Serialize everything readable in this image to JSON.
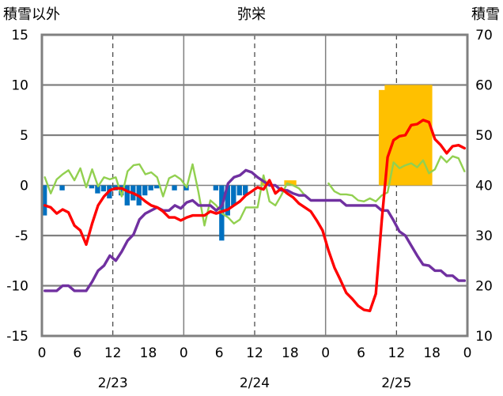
{
  "chart_data": {
    "type": "line",
    "title": "弥栄",
    "left_axis_title": "積雪以外",
    "right_axis_title": "積雪",
    "y_left": {
      "min": -15,
      "max": 15,
      "ticks": [
        15,
        10,
        5,
        0,
        -5,
        -10,
        -15
      ]
    },
    "y_right": {
      "min": 10,
      "max": 70,
      "ticks": [
        70,
        60,
        50,
        40,
        30,
        20,
        10
      ]
    },
    "x": {
      "min": 0,
      "max": 72,
      "step_hours": 1
    },
    "x_ticks": [
      {
        "t": 0,
        "label": "0"
      },
      {
        "t": 6,
        "label": "6"
      },
      {
        "t": 12,
        "label": "12"
      },
      {
        "t": 18,
        "label": "18"
      },
      {
        "t": 24,
        "label": "0"
      },
      {
        "t": 30,
        "label": "6"
      },
      {
        "t": 36,
        "label": "12"
      },
      {
        "t": 42,
        "label": "18"
      },
      {
        "t": 48,
        "label": "0"
      },
      {
        "t": 54,
        "label": "6"
      },
      {
        "t": 60,
        "label": "12"
      },
      {
        "t": 66,
        "label": "18"
      },
      {
        "t": 72,
        "label": "0"
      }
    ],
    "date_labels": [
      {
        "t": 12,
        "label": "2/23"
      },
      {
        "t": 36,
        "label": "2/24"
      },
      {
        "t": 60,
        "label": "2/25"
      }
    ],
    "day_lines": [
      24,
      48
    ],
    "half_day_lines": [
      12,
      36,
      60
    ],
    "colors": {
      "temperature": "#ff0000",
      "dewpoint": "#92d050",
      "wind": "#7030a0",
      "precip": "#0070c0",
      "snow": "#ffc000",
      "axis": "#808080"
    },
    "series_red": [
      {
        "t": 0,
        "v": -2.0
      },
      {
        "t": 1,
        "v": -2.2
      },
      {
        "t": 2,
        "v": -2.8
      },
      {
        "t": 3,
        "v": -2.4
      },
      {
        "t": 4,
        "v": -2.7
      },
      {
        "t": 5,
        "v": -4.0
      },
      {
        "t": 6,
        "v": -4.5
      },
      {
        "t": 7,
        "v": -5.9
      },
      {
        "t": 8,
        "v": -3.8
      },
      {
        "t": 9,
        "v": -2.0
      },
      {
        "t": 10,
        "v": -1.1
      },
      {
        "t": 11,
        "v": -0.5
      },
      {
        "t": 12,
        "v": -0.3
      },
      {
        "t": 13,
        "v": -0.3
      },
      {
        "t": 14,
        "v": -0.6
      },
      {
        "t": 15,
        "v": -0.8
      },
      {
        "t": 16,
        "v": -1.1
      },
      {
        "t": 17,
        "v": -1.6
      },
      {
        "t": 18,
        "v": -2.0
      },
      {
        "t": 19,
        "v": -2.2
      },
      {
        "t": 20,
        "v": -2.6
      },
      {
        "t": 21,
        "v": -3.2
      },
      {
        "t": 22,
        "v": -3.2
      },
      {
        "t": 23,
        "v": -3.5
      },
      {
        "t": 24,
        "v": -3.2
      },
      {
        "t": 25,
        "v": -3.0
      },
      {
        "t": 26,
        "v": -3.0
      },
      {
        "t": 27,
        "v": -3.0
      },
      {
        "t": 28,
        "v": -2.6
      },
      {
        "t": 29,
        "v": -2.8
      },
      {
        "t": 30,
        "v": -2.6
      },
      {
        "t": 31,
        "v": -2.4
      },
      {
        "t": 32,
        "v": -2.0
      },
      {
        "t": 33,
        "v": -1.6
      },
      {
        "t": 34,
        "v": -1.0
      },
      {
        "t": 35,
        "v": -0.6
      },
      {
        "t": 36,
        "v": -0.2
      },
      {
        "t": 37,
        "v": -0.4
      },
      {
        "t": 38,
        "v": 0.5
      },
      {
        "t": 39,
        "v": -0.8
      },
      {
        "t": 40,
        "v": -0.3
      },
      {
        "t": 41,
        "v": -0.8
      },
      {
        "t": 42,
        "v": -1.2
      },
      {
        "t": 43,
        "v": -1.8
      },
      {
        "t": 44,
        "v": -2.2
      },
      {
        "t": 45,
        "v": -2.6
      },
      {
        "t": 46,
        "v": -3.5
      },
      {
        "t": 47,
        "v": -4.5
      },
      {
        "t": 48,
        "v": -6.5
      },
      {
        "t": 49,
        "v": -8.2
      },
      {
        "t": 50,
        "v": -9.4
      },
      {
        "t": 51,
        "v": -10.7
      },
      {
        "t": 52,
        "v": -11.3
      },
      {
        "t": 53,
        "v": -12.0
      },
      {
        "t": 54,
        "v": -12.4
      },
      {
        "t": 55,
        "v": -12.5
      },
      {
        "t": 56,
        "v": -10.8
      },
      {
        "t": 57,
        "v": -3.5
      },
      {
        "t": 58,
        "v": 2.8
      },
      {
        "t": 59,
        "v": 4.5
      },
      {
        "t": 60,
        "v": 4.9
      },
      {
        "t": 61,
        "v": 5.0
      },
      {
        "t": 62,
        "v": 6.0
      },
      {
        "t": 63,
        "v": 6.1
      },
      {
        "t": 64,
        "v": 6.5
      },
      {
        "t": 65,
        "v": 6.3
      },
      {
        "t": 66,
        "v": 4.6
      },
      {
        "t": 67,
        "v": 4.0
      },
      {
        "t": 68,
        "v": 3.2
      },
      {
        "t": 69,
        "v": 3.9
      },
      {
        "t": 70,
        "v": 4.0
      },
      {
        "t": 71,
        "v": 3.7
      }
    ],
    "series_green": [
      {
        "t": 0,
        "v": 0.8
      },
      {
        "t": 1,
        "v": -0.8
      },
      {
        "t": 2,
        "v": 0.6
      },
      {
        "t": 3,
        "v": 1.1
      },
      {
        "t": 4,
        "v": 1.5
      },
      {
        "t": 5,
        "v": 0.5
      },
      {
        "t": 6,
        "v": 1.7
      },
      {
        "t": 7,
        "v": -0.2
      },
      {
        "t": 8,
        "v": 1.6
      },
      {
        "t": 9,
        "v": -0.1
      },
      {
        "t": 10,
        "v": 0.8
      },
      {
        "t": 11,
        "v": 0.6
      },
      {
        "t": 12,
        "v": 0.8
      },
      {
        "t": 13,
        "v": -1.1
      },
      {
        "t": 14,
        "v": 1.4
      },
      {
        "t": 15,
        "v": 2.0
      },
      {
        "t": 16,
        "v": 2.1
      },
      {
        "t": 17,
        "v": 1.1
      },
      {
        "t": 18,
        "v": 1.3
      },
      {
        "t": 19,
        "v": 0.8
      },
      {
        "t": 20,
        "v": -1.1
      },
      {
        "t": 21,
        "v": 0.7
      },
      {
        "t": 22,
        "v": 1.0
      },
      {
        "t": 23,
        "v": 0.6
      },
      {
        "t": 24,
        "v": -0.2
      },
      {
        "t": 25,
        "v": 2.1
      },
      {
        "t": 26,
        "v": -0.7
      },
      {
        "t": 27,
        "v": -4.0
      },
      {
        "t": 28,
        "v": -1.5
      },
      {
        "t": 29,
        "v": -2.0
      },
      {
        "t": 30,
        "v": -2.8
      },
      {
        "t": 31,
        "v": -3.2
      },
      {
        "t": 32,
        "v": -3.8
      },
      {
        "t": 33,
        "v": -3.4
      },
      {
        "t": 34,
        "v": -2.2
      },
      {
        "t": 35,
        "v": -2.2
      },
      {
        "t": 36,
        "v": -2.2
      },
      {
        "t": 37,
        "v": 1.0
      },
      {
        "t": 38,
        "v": -1.6
      },
      {
        "t": 39,
        "v": -2.0
      },
      {
        "t": 40,
        "v": -1.0
      },
      {
        "t": 41,
        "v": 0.2
      },
      {
        "t": 42,
        "v": 0.0
      },
      {
        "t": 43,
        "v": -0.3
      },
      {
        "t": 44,
        "v": -1.0
      },
      {
        "t": 45,
        "v": null
      },
      {
        "t": 46,
        "v": null
      },
      {
        "t": 47,
        "v": null
      },
      {
        "t": 48,
        "v": 0.2
      },
      {
        "t": 49,
        "v": -0.6
      },
      {
        "t": 50,
        "v": -0.9
      },
      {
        "t": 51,
        "v": -0.9
      },
      {
        "t": 52,
        "v": -1.0
      },
      {
        "t": 53,
        "v": -1.5
      },
      {
        "t": 54,
        "v": -1.6
      },
      {
        "t": 55,
        "v": -1.3
      },
      {
        "t": 56,
        "v": -1.6
      },
      {
        "t": 57,
        "v": -1.0
      },
      {
        "t": 58,
        "v": -0.7
      },
      {
        "t": 59,
        "v": 2.3
      },
      {
        "t": 60,
        "v": 1.7
      },
      {
        "t": 61,
        "v": 2.0
      },
      {
        "t": 62,
        "v": 2.2
      },
      {
        "t": 63,
        "v": 1.8
      },
      {
        "t": 64,
        "v": 2.5
      },
      {
        "t": 65,
        "v": 1.2
      },
      {
        "t": 66,
        "v": 1.6
      },
      {
        "t": 67,
        "v": 2.9
      },
      {
        "t": 68,
        "v": 2.3
      },
      {
        "t": 69,
        "v": 2.9
      },
      {
        "t": 70,
        "v": 2.7
      },
      {
        "t": 71,
        "v": 1.4
      }
    ],
    "series_purple": [
      {
        "t": 0,
        "v": -10.5
      },
      {
        "t": 1,
        "v": -10.5
      },
      {
        "t": 2,
        "v": -10.5
      },
      {
        "t": 3,
        "v": -10.0
      },
      {
        "t": 4,
        "v": -10.0
      },
      {
        "t": 5,
        "v": -10.5
      },
      {
        "t": 6,
        "v": -10.5
      },
      {
        "t": 7,
        "v": -10.5
      },
      {
        "t": 8,
        "v": -9.6
      },
      {
        "t": 9,
        "v": -8.5
      },
      {
        "t": 10,
        "v": -8.0
      },
      {
        "t": 11,
        "v": -7.0
      },
      {
        "t": 12,
        "v": -7.5
      },
      {
        "t": 13,
        "v": -6.6
      },
      {
        "t": 14,
        "v": -5.5
      },
      {
        "t": 15,
        "v": -4.9
      },
      {
        "t": 16,
        "v": -3.4
      },
      {
        "t": 17,
        "v": -2.8
      },
      {
        "t": 18,
        "v": -2.5
      },
      {
        "t": 19,
        "v": -2.2
      },
      {
        "t": 20,
        "v": -2.5
      },
      {
        "t": 21,
        "v": -2.5
      },
      {
        "t": 22,
        "v": -2.0
      },
      {
        "t": 23,
        "v": -2.3
      },
      {
        "t": 24,
        "v": -1.7
      },
      {
        "t": 25,
        "v": -1.5
      },
      {
        "t": 26,
        "v": -2.0
      },
      {
        "t": 27,
        "v": -2.0
      },
      {
        "t": 28,
        "v": -2.0
      },
      {
        "t": 29,
        "v": -2.5
      },
      {
        "t": 30,
        "v": -2.0
      },
      {
        "t": 31,
        "v": 0.2
      },
      {
        "t": 32,
        "v": 0.8
      },
      {
        "t": 33,
        "v": 1.0
      },
      {
        "t": 34,
        "v": 1.5
      },
      {
        "t": 35,
        "v": 1.3
      },
      {
        "t": 36,
        "v": 0.8
      },
      {
        "t": 37,
        "v": 0.4
      },
      {
        "t": 38,
        "v": 0.0
      },
      {
        "t": 39,
        "v": 0.0
      },
      {
        "t": 40,
        "v": -0.5
      },
      {
        "t": 41,
        "v": -0.5
      },
      {
        "t": 42,
        "v": -0.8
      },
      {
        "t": 43,
        "v": -1.0
      },
      {
        "t": 44,
        "v": -1.0
      },
      {
        "t": 45,
        "v": -1.5
      },
      {
        "t": 46,
        "v": -1.5
      },
      {
        "t": 47,
        "v": -1.5
      },
      {
        "t": 48,
        "v": -1.5
      },
      {
        "t": 49,
        "v": -1.5
      },
      {
        "t": 50,
        "v": -1.5
      },
      {
        "t": 51,
        "v": -2.0
      },
      {
        "t": 52,
        "v": -2.0
      },
      {
        "t": 53,
        "v": -2.0
      },
      {
        "t": 54,
        "v": -2.0
      },
      {
        "t": 55,
        "v": -2.0
      },
      {
        "t": 56,
        "v": -2.0
      },
      {
        "t": 57,
        "v": -2.5
      },
      {
        "t": 58,
        "v": -2.5
      },
      {
        "t": 59,
        "v": -3.5
      },
      {
        "t": 60,
        "v": -4.6
      },
      {
        "t": 61,
        "v": -5.0
      },
      {
        "t": 62,
        "v": -6.0
      },
      {
        "t": 63,
        "v": -7.0
      },
      {
        "t": 64,
        "v": -7.9
      },
      {
        "t": 65,
        "v": -8.0
      },
      {
        "t": 66,
        "v": -8.5
      },
      {
        "t": 67,
        "v": -8.5
      },
      {
        "t": 68,
        "v": -9.0
      },
      {
        "t": 69,
        "v": -9.0
      },
      {
        "t": 70,
        "v": -9.5
      },
      {
        "t": 71,
        "v": -9.5
      }
    ],
    "blue_bars": [
      {
        "t": 0,
        "v": -3.0
      },
      {
        "t": 3,
        "v": -0.5
      },
      {
        "t": 8,
        "v": -0.3
      },
      {
        "t": 9,
        "v": -0.8
      },
      {
        "t": 10,
        "v": -0.6
      },
      {
        "t": 11,
        "v": -1.3
      },
      {
        "t": 12,
        "v": -0.5
      },
      {
        "t": 13,
        "v": -1.0
      },
      {
        "t": 14,
        "v": -2.0
      },
      {
        "t": 15,
        "v": -1.5
      },
      {
        "t": 16,
        "v": -2.0
      },
      {
        "t": 17,
        "v": -1.0
      },
      {
        "t": 18,
        "v": -0.5
      },
      {
        "t": 19,
        "v": -0.3
      },
      {
        "t": 22,
        "v": -0.5
      },
      {
        "t": 24,
        "v": -0.5
      },
      {
        "t": 29,
        "v": -0.5
      },
      {
        "t": 30,
        "v": -5.5
      },
      {
        "t": 31,
        "v": -3.0
      },
      {
        "t": 32,
        "v": -2.0
      },
      {
        "t": 33,
        "v": -1.0
      },
      {
        "t": 34,
        "v": -1.0
      }
    ],
    "snow_bars": [
      {
        "t": 37,
        "v": 41.0
      },
      {
        "t": 41,
        "v": 41.0
      },
      {
        "t": 42,
        "v": 41.0
      },
      {
        "t": 57,
        "v": 59.0
      },
      {
        "t": 58,
        "v": 60.0
      },
      {
        "t": 59,
        "v": 60.0
      },
      {
        "t": 60,
        "v": 60.0
      },
      {
        "t": 61,
        "v": 60.0
      },
      {
        "t": 62,
        "v": 60.0
      },
      {
        "t": 63,
        "v": 60.0
      },
      {
        "t": 64,
        "v": 60.0
      },
      {
        "t": 65,
        "v": 60.0
      },
      {
        "t": 66,
        "v": 40.0
      }
    ]
  }
}
